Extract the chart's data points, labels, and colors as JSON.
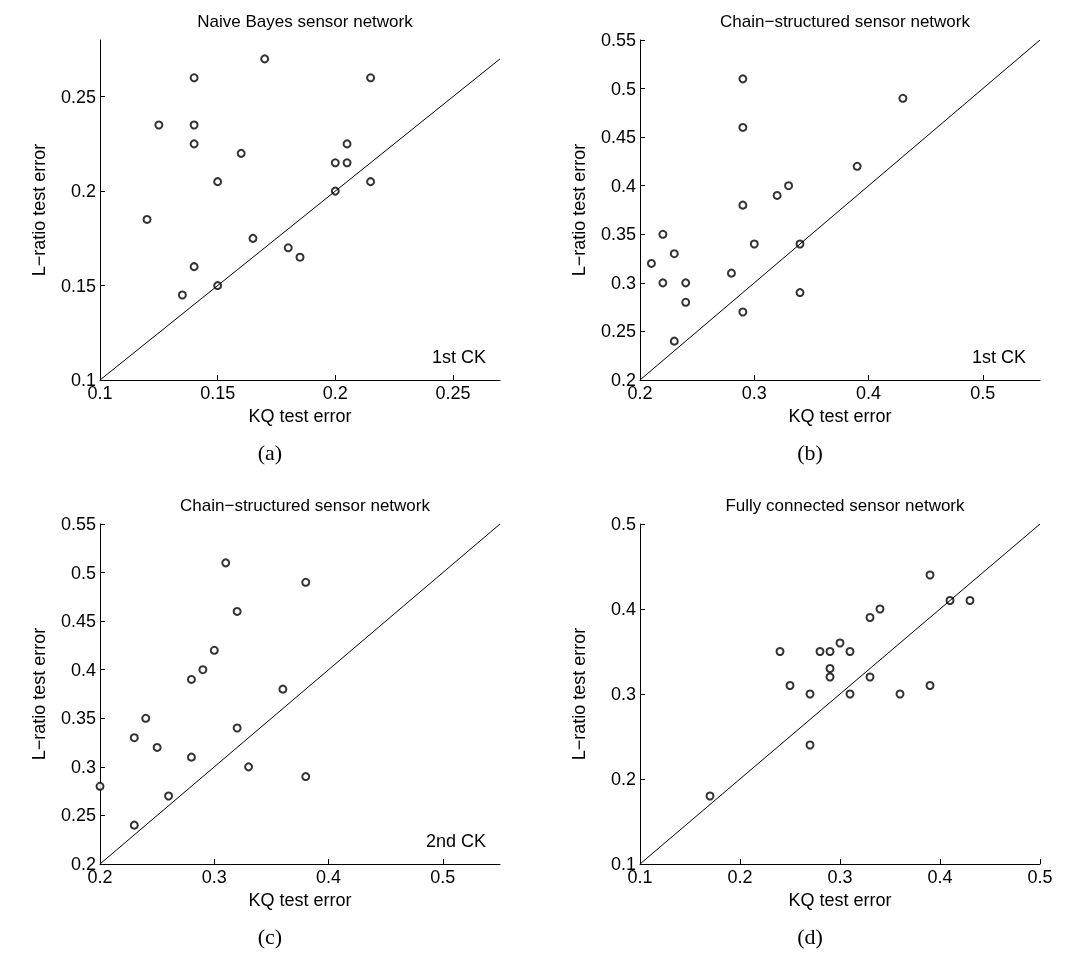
{
  "chart_data": [
    {
      "type": "scatter",
      "title": "Naive Bayes sensor network",
      "xlabel": "KQ test error",
      "ylabel": "L−ratio test error",
      "annotations": [
        "1st CK",
        "(a)"
      ],
      "grid": false,
      "xlim": [
        0.1,
        0.27
      ],
      "ylim": [
        0.1,
        0.28
      ],
      "xticks": [
        0.1,
        0.15,
        0.2,
        0.25
      ],
      "yticks": [
        0.1,
        0.15,
        0.2,
        0.25
      ],
      "series": [
        {
          "marker": "circle",
          "color": "#000000",
          "x": [
            0.12,
            0.125,
            0.14,
            0.14,
            0.14,
            0.14,
            0.135,
            0.15,
            0.15,
            0.16,
            0.165,
            0.17,
            0.18,
            0.185,
            0.2,
            0.2,
            0.205,
            0.205,
            0.215,
            0.215
          ],
          "values": [
            0.185,
            0.235,
            0.26,
            0.235,
            0.225,
            0.16,
            0.145,
            0.205,
            0.15,
            0.22,
            0.175,
            0.27,
            0.17,
            0.165,
            0.215,
            0.2,
            0.225,
            0.215,
            0.26,
            0.205
          ]
        },
        {
          "type": "line",
          "marker": "none",
          "color": "#000000",
          "x": [
            0.1,
            0.27
          ],
          "values": [
            0.1,
            0.27
          ]
        }
      ]
    },
    {
      "type": "scatter",
      "title": "Chain−structured sensor network",
      "xlabel": "KQ test error",
      "ylabel": "L−ratio test error",
      "annotations": [
        "1st CK",
        "(b)"
      ],
      "grid": false,
      "xlim": [
        0.2,
        0.55
      ],
      "ylim": [
        0.2,
        0.55
      ],
      "xticks": [
        0.2,
        0.3,
        0.4,
        0.5
      ],
      "yticks": [
        0.2,
        0.25,
        0.3,
        0.35,
        0.4,
        0.45,
        0.5,
        0.55
      ],
      "series": [
        {
          "marker": "circle",
          "color": "#000000",
          "x": [
            0.21,
            0.22,
            0.22,
            0.23,
            0.23,
            0.24,
            0.24,
            0.28,
            0.29,
            0.29,
            0.29,
            0.29,
            0.3,
            0.32,
            0.33,
            0.34,
            0.34,
            0.39,
            0.43
          ],
          "values": [
            0.32,
            0.35,
            0.3,
            0.33,
            0.24,
            0.3,
            0.28,
            0.31,
            0.51,
            0.46,
            0.38,
            0.27,
            0.34,
            0.39,
            0.4,
            0.34,
            0.29,
            0.42,
            0.49
          ]
        },
        {
          "type": "line",
          "marker": "none",
          "color": "#000000",
          "x": [
            0.2,
            0.55
          ],
          "values": [
            0.2,
            0.55
          ]
        }
      ]
    },
    {
      "type": "scatter",
      "title": "Chain−structured sensor network",
      "xlabel": "KQ test error",
      "ylabel": "L−ratio test error",
      "annotations": [
        "2nd CK",
        "(c)"
      ],
      "grid": false,
      "xlim": [
        0.2,
        0.55
      ],
      "ylim": [
        0.2,
        0.55
      ],
      "xticks": [
        0.2,
        0.3,
        0.4,
        0.5
      ],
      "yticks": [
        0.2,
        0.25,
        0.3,
        0.35,
        0.4,
        0.45,
        0.5,
        0.55
      ],
      "series": [
        {
          "marker": "circle",
          "color": "#000000",
          "x": [
            0.2,
            0.23,
            0.23,
            0.24,
            0.25,
            0.26,
            0.28,
            0.28,
            0.29,
            0.3,
            0.31,
            0.32,
            0.32,
            0.33,
            0.36,
            0.38,
            0.38
          ],
          "values": [
            0.28,
            0.33,
            0.24,
            0.35,
            0.32,
            0.27,
            0.39,
            0.31,
            0.4,
            0.42,
            0.51,
            0.46,
            0.34,
            0.3,
            0.38,
            0.49,
            0.29
          ]
        },
        {
          "type": "line",
          "marker": "none",
          "color": "#000000",
          "x": [
            0.2,
            0.55
          ],
          "values": [
            0.2,
            0.55
          ]
        }
      ]
    },
    {
      "type": "scatter",
      "title": "Fully connected sensor network",
      "xlabel": "KQ test error",
      "ylabel": "L−ratio test error",
      "annotations": [
        "(d)"
      ],
      "grid": false,
      "xlim": [
        0.1,
        0.5
      ],
      "ylim": [
        0.1,
        0.5
      ],
      "xticks": [
        0.1,
        0.2,
        0.3,
        0.4,
        0.5
      ],
      "yticks": [
        0.1,
        0.2,
        0.3,
        0.4,
        0.5
      ],
      "series": [
        {
          "marker": "circle",
          "color": "#000000",
          "x": [
            0.17,
            0.24,
            0.25,
            0.27,
            0.27,
            0.28,
            0.29,
            0.29,
            0.29,
            0.3,
            0.31,
            0.31,
            0.33,
            0.33,
            0.34,
            0.36,
            0.39,
            0.39,
            0.41,
            0.43
          ],
          "values": [
            0.18,
            0.35,
            0.31,
            0.3,
            0.24,
            0.35,
            0.35,
            0.33,
            0.32,
            0.36,
            0.35,
            0.3,
            0.39,
            0.32,
            0.4,
            0.3,
            0.44,
            0.31,
            0.41,
            0.41
          ]
        },
        {
          "type": "line",
          "marker": "none",
          "color": "#000000",
          "x": [
            0.1,
            0.5
          ],
          "values": [
            0.1,
            0.5
          ]
        }
      ]
    }
  ]
}
